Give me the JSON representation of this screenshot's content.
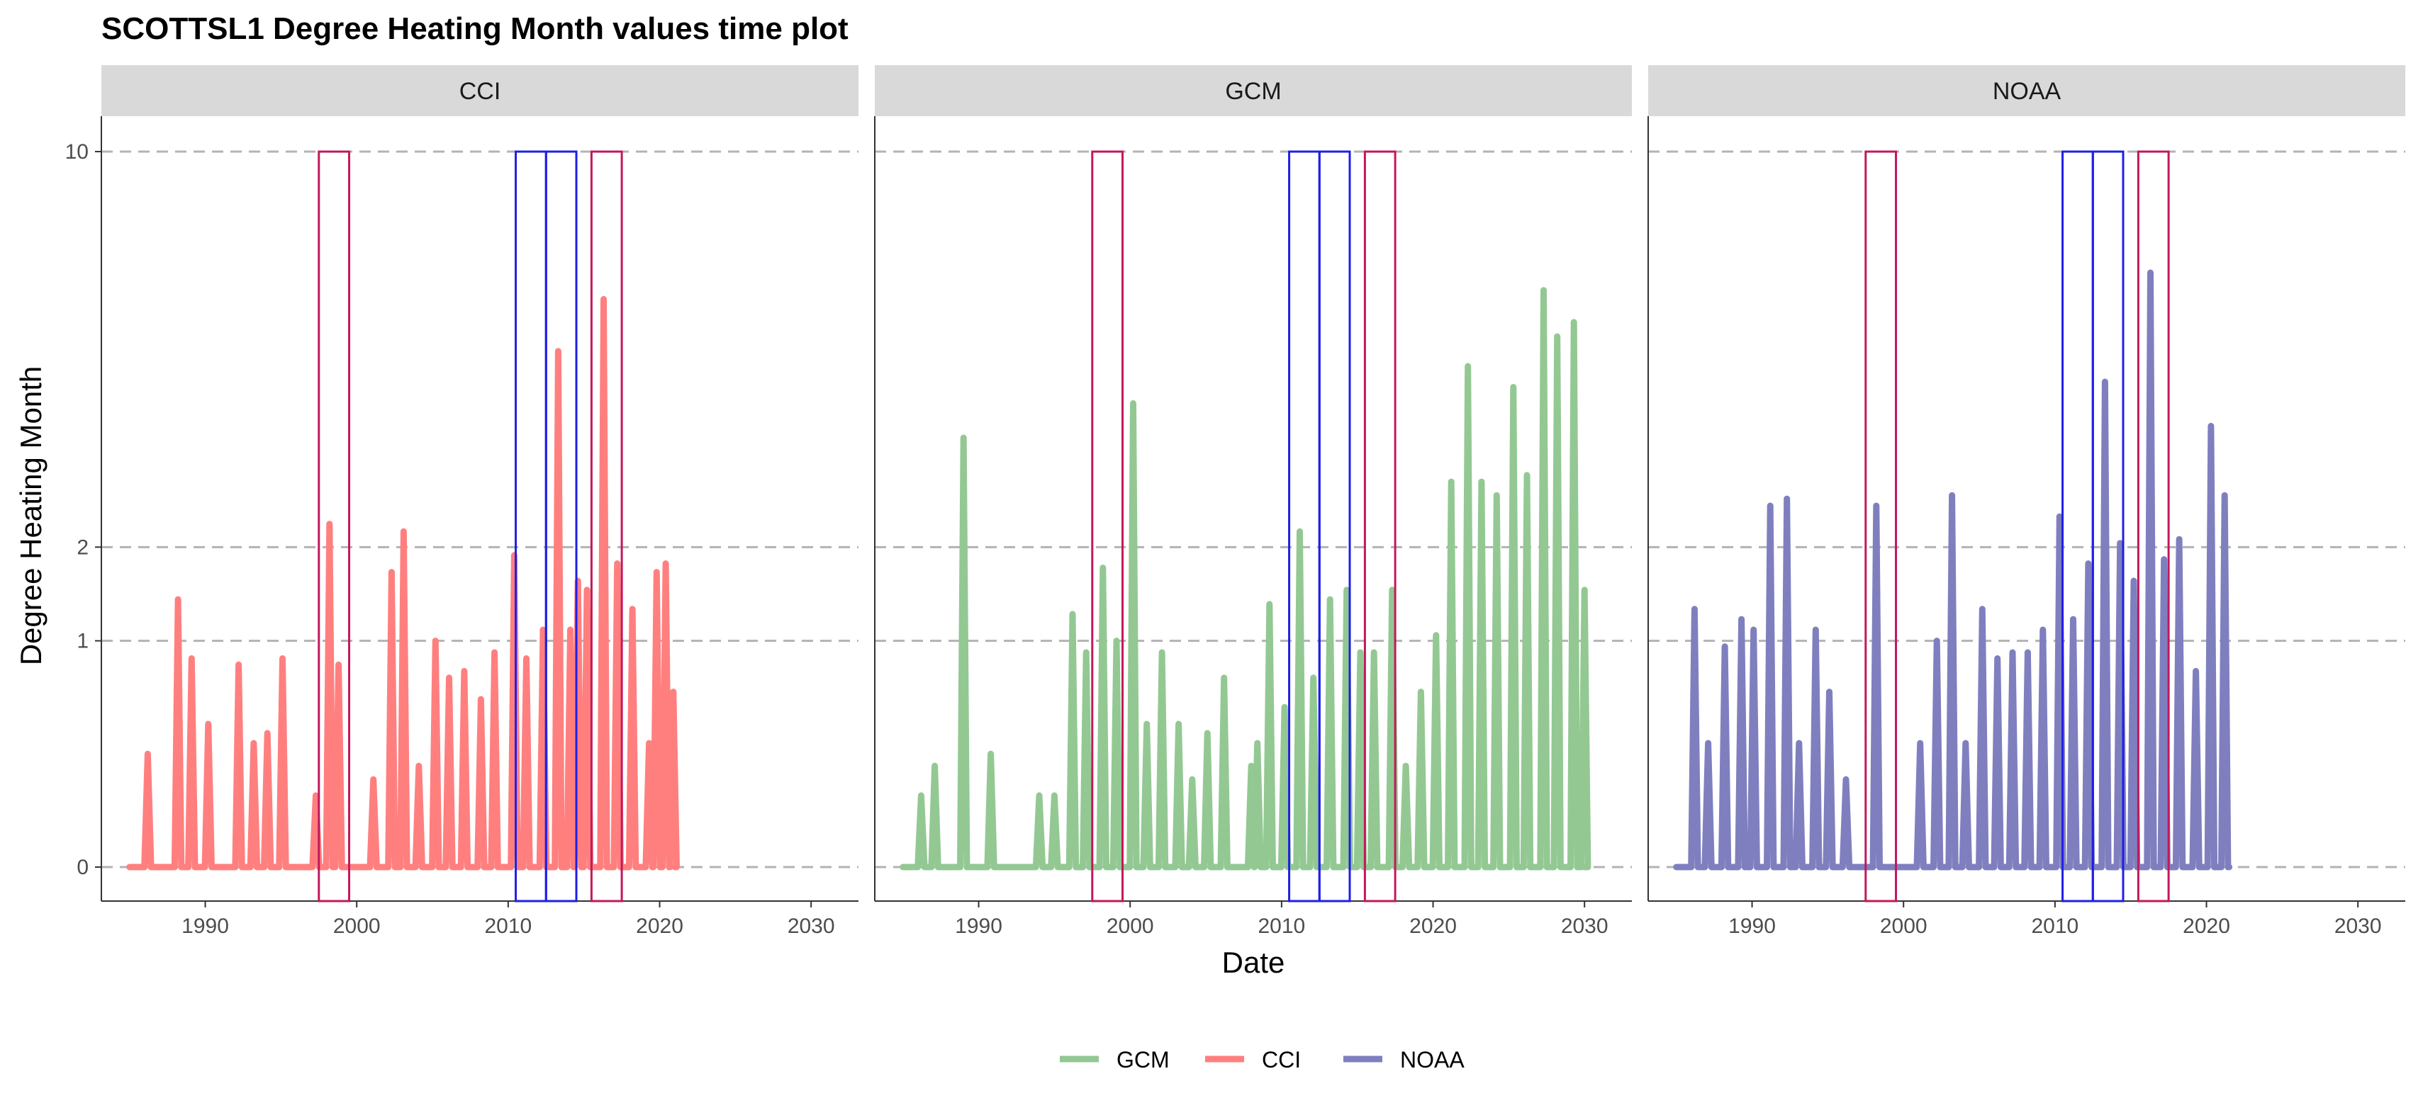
{
  "chart_data": {
    "type": "line",
    "title": "SCOTTSL1 Degree Heating Month values time plot",
    "xlabel": "Date",
    "ylabel": "Degree Heating Month",
    "x_ticks": [
      "1990",
      "2000",
      "2010",
      "2020",
      "2030"
    ],
    "y_ticks": [
      "0",
      "1",
      "2",
      "10"
    ],
    "y_scale": "square-root",
    "xlim": [
      1983.0,
      2033.0
    ],
    "ylim": [
      0,
      10.5
    ],
    "grid": "horizontal dashed at 0, 1, 2, 10",
    "legend_position": "bottom",
    "legend": [
      "GCM",
      "CCI",
      "NOAA"
    ],
    "colors": {
      "GCM": "#93c893",
      "CCI": "#ff7f7f",
      "NOAA": "#7f7fbf",
      "event_crimson": "#c2185b",
      "event_blue": "#1f1fe6",
      "hline": "#b3b3b3",
      "strip": "#d9d9d9"
    },
    "event_windows": [
      {
        "start": 1997.5,
        "end": 1999.5,
        "color": "crimson",
        "y": 10
      },
      {
        "start": 2010.5,
        "end": 2012.5,
        "color": "blue",
        "y": 10
      },
      {
        "start": 2012.5,
        "end": 2014.5,
        "color": "blue",
        "y": 10
      },
      {
        "start": 2015.5,
        "end": 2017.5,
        "color": "crimson",
        "y": 10
      }
    ],
    "panels": [
      {
        "facet": "CCI",
        "series": "CCI",
        "range": [
          1985.0,
          2021.0
        ],
        "peaks": [
          [
            1986.2,
            0.25
          ],
          [
            1988.2,
            1.4
          ],
          [
            1989.1,
            0.85
          ],
          [
            1990.2,
            0.4
          ],
          [
            1992.2,
            0.8
          ],
          [
            1993.2,
            0.3
          ],
          [
            1994.1,
            0.35
          ],
          [
            1995.1,
            0.85
          ],
          [
            1997.3,
            0.1
          ],
          [
            1998.2,
            2.3
          ],
          [
            1998.8,
            0.8
          ],
          [
            2001.1,
            0.15
          ],
          [
            2002.3,
            1.7
          ],
          [
            2003.1,
            2.2
          ],
          [
            2004.1,
            0.2
          ],
          [
            2005.2,
            1.0
          ],
          [
            2006.1,
            0.7
          ],
          [
            2007.1,
            0.75
          ],
          [
            2008.2,
            0.55
          ],
          [
            2009.1,
            0.9
          ],
          [
            2010.4,
            1.9
          ],
          [
            2011.2,
            0.85
          ],
          [
            2012.3,
            1.1
          ],
          [
            2013.3,
            5.2
          ],
          [
            2014.1,
            1.1
          ],
          [
            2014.6,
            1.6
          ],
          [
            2015.2,
            1.5
          ],
          [
            2016.3,
            6.3
          ],
          [
            2017.2,
            1.8
          ],
          [
            2018.2,
            1.3
          ],
          [
            2019.3,
            0.3
          ],
          [
            2019.8,
            1.7
          ],
          [
            2020.4,
            1.8
          ],
          [
            2020.9,
            0.6
          ]
        ]
      },
      {
        "facet": "GCM",
        "series": "GCM",
        "range": [
          1985.0,
          2030.0
        ],
        "peaks": [
          [
            1986.2,
            0.1
          ],
          [
            1987.1,
            0.2
          ],
          [
            1989.0,
            3.6
          ],
          [
            1990.8,
            0.25
          ],
          [
            1994.0,
            0.1
          ],
          [
            1995.0,
            0.1
          ],
          [
            1996.2,
            1.25
          ],
          [
            1997.1,
            0.9
          ],
          [
            1998.2,
            1.75
          ],
          [
            1999.1,
            1.0
          ],
          [
            2000.2,
            4.2
          ],
          [
            2001.1,
            0.4
          ],
          [
            2002.1,
            0.9
          ],
          [
            2003.2,
            0.4
          ],
          [
            2004.1,
            0.15
          ],
          [
            2005.1,
            0.35
          ],
          [
            2006.2,
            0.7
          ],
          [
            2008.0,
            0.2
          ],
          [
            2008.4,
            0.3
          ],
          [
            2009.2,
            1.35
          ],
          [
            2010.2,
            0.5
          ],
          [
            2011.2,
            2.2
          ],
          [
            2012.1,
            0.7
          ],
          [
            2013.2,
            1.4
          ],
          [
            2014.3,
            1.5
          ],
          [
            2015.2,
            0.9
          ],
          [
            2016.1,
            0.9
          ],
          [
            2017.3,
            1.5
          ],
          [
            2018.2,
            0.2
          ],
          [
            2019.2,
            0.6
          ],
          [
            2020.2,
            1.05
          ],
          [
            2021.2,
            2.9
          ],
          [
            2022.3,
            4.9
          ],
          [
            2023.2,
            2.9
          ],
          [
            2024.2,
            2.7
          ],
          [
            2025.3,
            4.5
          ],
          [
            2026.2,
            3.0
          ],
          [
            2027.3,
            6.5
          ],
          [
            2028.2,
            5.5
          ],
          [
            2029.3,
            5.8
          ],
          [
            2030.0,
            1.5
          ]
        ]
      },
      {
        "facet": "NOAA",
        "series": "NOAA",
        "range": [
          1985.0,
          2021.5
        ],
        "peaks": [
          [
            1986.2,
            1.3
          ],
          [
            1987.1,
            0.3
          ],
          [
            1988.2,
            0.95
          ],
          [
            1989.3,
            1.2
          ],
          [
            1990.1,
            1.1
          ],
          [
            1991.2,
            2.55
          ],
          [
            1992.3,
            2.65
          ],
          [
            1993.1,
            0.3
          ],
          [
            1994.2,
            1.1
          ],
          [
            1995.1,
            0.6
          ],
          [
            1996.2,
            0.15
          ],
          [
            1998.2,
            2.55
          ],
          [
            2001.1,
            0.3
          ],
          [
            2002.2,
            1.0
          ],
          [
            2003.2,
            2.7
          ],
          [
            2004.1,
            0.3
          ],
          [
            2005.2,
            1.3
          ],
          [
            2006.2,
            0.85
          ],
          [
            2007.2,
            0.9
          ],
          [
            2008.2,
            0.9
          ],
          [
            2009.2,
            1.1
          ],
          [
            2010.3,
            2.4
          ],
          [
            2011.2,
            1.2
          ],
          [
            2012.2,
            1.8
          ],
          [
            2013.3,
            4.6
          ],
          [
            2014.3,
            2.05
          ],
          [
            2015.2,
            1.6
          ],
          [
            2016.3,
            6.9
          ],
          [
            2017.2,
            1.85
          ],
          [
            2018.2,
            2.1
          ],
          [
            2019.3,
            0.75
          ],
          [
            2020.3,
            3.8
          ],
          [
            2021.2,
            2.7
          ]
        ]
      }
    ]
  }
}
